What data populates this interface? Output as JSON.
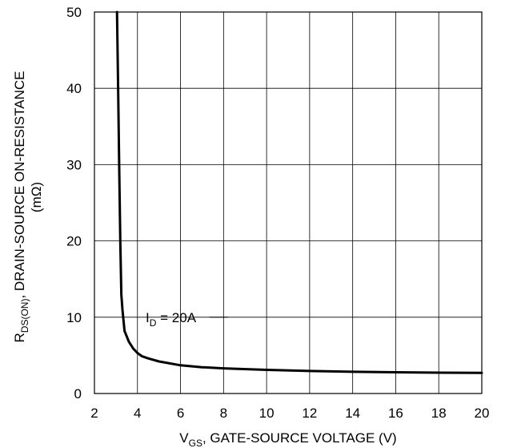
{
  "chart_data": {
    "type": "line",
    "xlabel": {
      "main": "V",
      "sub": "GS",
      "rest": ", GATE-SOURCE VOLTAGE (V)"
    },
    "ylabel": {
      "main": "R",
      "sub": "DS(ON)",
      "rest": ", DRAIN-SOURCE ON-RESISTANCE",
      "line2": "(mΩ)"
    },
    "xlim": [
      2,
      20
    ],
    "ylim": [
      0,
      50
    ],
    "xticks": [
      2,
      4,
      6,
      8,
      10,
      12,
      14,
      16,
      18,
      20
    ],
    "yticks": [
      0,
      10,
      20,
      30,
      40,
      50
    ],
    "grid": true,
    "series": [
      {
        "name": "I_D = 20A",
        "x": [
          3.05,
          3.1,
          3.15,
          3.2,
          3.25,
          3.3,
          3.4,
          3.6,
          3.8,
          4.0,
          4.2,
          4.5,
          5.0,
          6.0,
          7.0,
          8.0,
          10.0,
          12.0,
          14.0,
          16.0,
          18.0,
          20.0
        ],
        "y": [
          50,
          40,
          30,
          20,
          13,
          11,
          8.2,
          6.8,
          5.9,
          5.3,
          4.9,
          4.6,
          4.2,
          3.7,
          3.45,
          3.3,
          3.1,
          2.95,
          2.85,
          2.78,
          2.73,
          2.7
        ]
      }
    ],
    "annotation": {
      "main": "I",
      "sub": "D",
      "rest": " = 20A",
      "x": 7.0,
      "y": 10.0
    }
  }
}
